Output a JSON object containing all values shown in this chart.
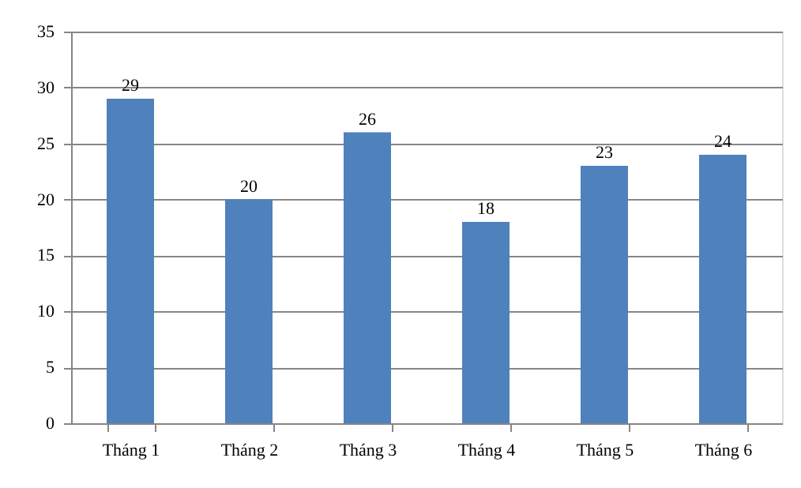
{
  "chart_data": {
    "type": "bar",
    "categories": [
      "Tháng 1",
      "Tháng 2",
      "Tháng 3",
      "Tháng 4",
      "Tháng 5",
      "Tháng 6"
    ],
    "values": [
      29,
      20,
      26,
      18,
      23,
      24
    ],
    "color": "#4f81bd",
    "ylim": [
      0,
      35
    ],
    "yticks": [
      0,
      5,
      10,
      15,
      20,
      25,
      30,
      35
    ],
    "grid": "y",
    "data_labels": true
  }
}
